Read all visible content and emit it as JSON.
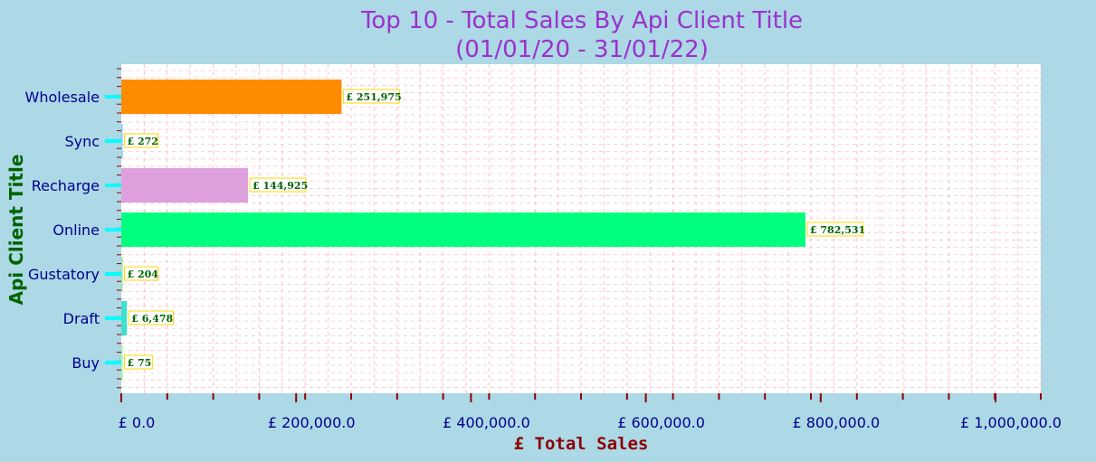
{
  "chart_data": {
    "type": "bar",
    "orientation": "horizontal",
    "title": [
      "Top 10 - Total Sales By Api Client Title",
      "(01/01/20 - 31/01/22)"
    ],
    "xlabel": "£ Total Sales",
    "ylabel": "Api Client Title",
    "categories": [
      "Wholesale",
      "Sync",
      "Recharge",
      "Online",
      "Gustatory",
      "Draft",
      "Buy"
    ],
    "values": [
      251975,
      272,
      144925,
      782531,
      204,
      6478,
      75
    ],
    "value_labels": [
      "£ 251,975",
      "£ 272",
      "£ 144,925",
      "£ 782,531",
      "£ 204",
      "£ 6,478",
      "£ 75"
    ],
    "bar_colors": [
      "#ff8c00",
      "#87ceeb",
      "#dda0dd",
      "#00ff7f",
      "#90ee90",
      "#40e0d0",
      "#98fb98"
    ],
    "xlim": [
      0,
      1000000
    ],
    "x_ticks": [
      0,
      200000,
      400000,
      600000,
      800000,
      1000000
    ],
    "x_tick_labels": [
      "£ 0.0",
      "£ 200,000.0",
      "£ 400,000.0",
      "£ 600,000.0",
      "£ 800,000.0",
      "£ 1,000,000.0"
    ],
    "grid": true,
    "colors": {
      "background": "#add8e6",
      "plot_background": "#ffffff",
      "title": "#9932cc",
      "xlabel": "#8b0000",
      "ylabel": "#006400",
      "tick_labels": "#00008b",
      "x_ticks": "#8b0000",
      "y_ticks": "#00ffff",
      "grid": "#ffc0cb",
      "data_label_text": "#006400",
      "data_label_border": "#ffd700"
    }
  }
}
